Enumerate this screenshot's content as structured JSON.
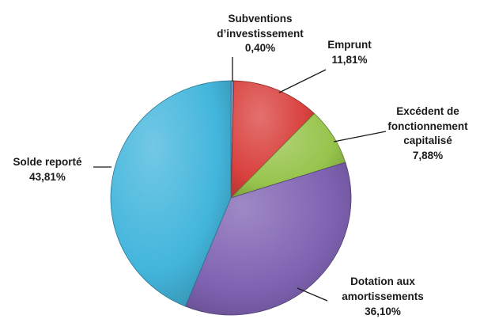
{
  "chart_data": {
    "type": "pie",
    "title": "",
    "slices": [
      {
        "label_lines": [
          "Subventions",
          "d’investissement"
        ],
        "value": 0.4,
        "value_label": "0,40%",
        "color": "#6a7fa8"
      },
      {
        "label_lines": [
          "Emprunt"
        ],
        "value": 11.81,
        "value_label": "11,81%",
        "color": "#d9413e"
      },
      {
        "label_lines": [
          "Excédent de",
          "fonctionnement",
          "capitalisé"
        ],
        "value": 7.88,
        "value_label": "7,88%",
        "color": "#97c44c"
      },
      {
        "label_lines": [
          "Dotation aux",
          "amortissements"
        ],
        "value": 36.1,
        "value_label": "36,10%",
        "color": "#7f62b2"
      },
      {
        "label_lines": [
          "Solde reporté"
        ],
        "value": 43.81,
        "value_label": "43,81%",
        "color": "#43b6dc"
      }
    ],
    "start_angle_deg": 0,
    "direction": "clockwise",
    "style": "3d-shaded"
  }
}
